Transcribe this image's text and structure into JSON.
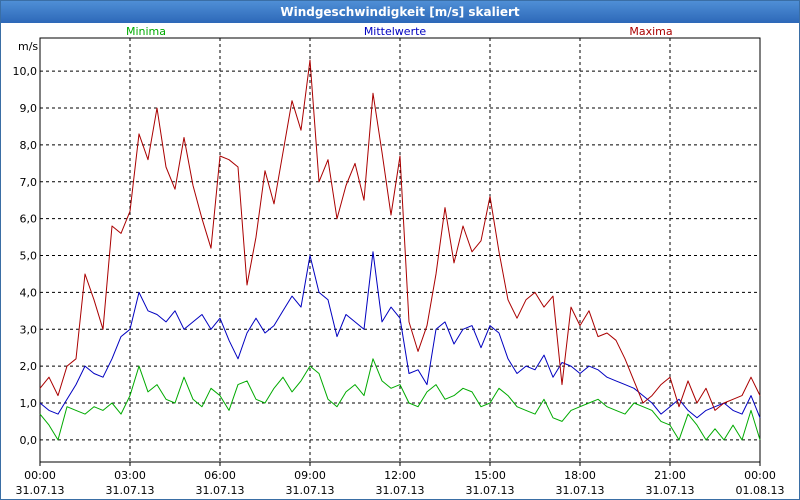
{
  "window": {
    "title": "Windgeschwindigkeit [m/s] skaliert"
  },
  "chart_data": {
    "type": "line",
    "title": "Windgeschwindigkeit [m/s] skaliert",
    "ylabel": "m/s",
    "ylim": [
      -0.6,
      10.9
    ],
    "yticks": [
      "0,0",
      "1,0",
      "2,0",
      "3,0",
      "4,0",
      "5,0",
      "6,0",
      "7,0",
      "8,0",
      "9,0",
      "10,0"
    ],
    "xlim_hours": [
      0,
      24
    ],
    "xticks": [
      {
        "time": "00:00",
        "date": "31.07.13"
      },
      {
        "time": "03:00",
        "date": "31.07.13"
      },
      {
        "time": "06:00",
        "date": "31.07.13"
      },
      {
        "time": "09:00",
        "date": "31.07.13"
      },
      {
        "time": "12:00",
        "date": "31.07.13"
      },
      {
        "time": "15:00",
        "date": "31.07.13"
      },
      {
        "time": "18:00",
        "date": "31.07.13"
      },
      {
        "time": "21:00",
        "date": "31.07.13"
      },
      {
        "time": "00:00",
        "date": "01.08.13"
      }
    ],
    "grid": true,
    "series": [
      {
        "name": "Minima",
        "color": "#00aa00",
        "x": [
          0,
          0.3,
          0.6,
          0.9,
          1.2,
          1.5,
          1.8,
          2.1,
          2.4,
          2.7,
          3.0,
          3.3,
          3.6,
          3.9,
          4.2,
          4.5,
          4.8,
          5.1,
          5.4,
          5.7,
          6.0,
          6.3,
          6.6,
          6.9,
          7.2,
          7.5,
          7.8,
          8.1,
          8.4,
          8.7,
          9.0,
          9.3,
          9.6,
          9.9,
          10.2,
          10.5,
          10.8,
          11.1,
          11.4,
          11.7,
          12.0,
          12.3,
          12.6,
          12.9,
          13.2,
          13.5,
          13.8,
          14.1,
          14.4,
          14.7,
          15.0,
          15.3,
          15.6,
          15.9,
          16.2,
          16.5,
          16.8,
          17.1,
          17.4,
          17.7,
          18.0,
          18.3,
          18.6,
          18.9,
          19.2,
          19.5,
          19.8,
          20.1,
          20.4,
          20.7,
          21.0,
          21.3,
          21.6,
          21.9,
          22.2,
          22.5,
          22.8,
          23.1,
          23.4,
          23.7,
          24.0
        ],
        "values": [
          0.7,
          0.4,
          0.0,
          0.9,
          0.8,
          0.7,
          0.9,
          0.8,
          1.0,
          0.7,
          1.2,
          2.0,
          1.3,
          1.5,
          1.1,
          1.0,
          1.7,
          1.1,
          0.9,
          1.4,
          1.2,
          0.8,
          1.5,
          1.6,
          1.1,
          1.0,
          1.4,
          1.7,
          1.3,
          1.6,
          2.0,
          1.8,
          1.1,
          0.9,
          1.3,
          1.5,
          1.2,
          2.2,
          1.6,
          1.4,
          1.5,
          1.0,
          0.9,
          1.3,
          1.5,
          1.1,
          1.2,
          1.4,
          1.3,
          0.9,
          1.0,
          1.4,
          1.2,
          0.9,
          0.8,
          0.7,
          1.1,
          0.6,
          0.5,
          0.8,
          0.9,
          1.0,
          1.1,
          0.9,
          0.8,
          0.7,
          1.0,
          0.9,
          0.8,
          0.5,
          0.4,
          0.0,
          0.7,
          0.4,
          0.0,
          0.3,
          0.0,
          0.4,
          0.0,
          0.8,
          0.0
        ]
      },
      {
        "name": "Mittelwerte",
        "color": "#0000c0",
        "x": [
          0,
          0.3,
          0.6,
          0.9,
          1.2,
          1.5,
          1.8,
          2.1,
          2.4,
          2.7,
          3.0,
          3.3,
          3.6,
          3.9,
          4.2,
          4.5,
          4.8,
          5.1,
          5.4,
          5.7,
          6.0,
          6.3,
          6.6,
          6.9,
          7.2,
          7.5,
          7.8,
          8.1,
          8.4,
          8.7,
          9.0,
          9.3,
          9.6,
          9.9,
          10.2,
          10.5,
          10.8,
          11.1,
          11.4,
          11.7,
          12.0,
          12.3,
          12.6,
          12.9,
          13.2,
          13.5,
          13.8,
          14.1,
          14.4,
          14.7,
          15.0,
          15.3,
          15.6,
          15.9,
          16.2,
          16.5,
          16.8,
          17.1,
          17.4,
          17.7,
          18.0,
          18.3,
          18.6,
          18.9,
          19.2,
          19.5,
          19.8,
          20.1,
          20.4,
          20.7,
          21.0,
          21.3,
          21.6,
          21.9,
          22.2,
          22.5,
          22.8,
          23.1,
          23.4,
          23.7,
          24.0
        ],
        "values": [
          1.0,
          0.8,
          0.7,
          1.1,
          1.5,
          2.0,
          1.8,
          1.7,
          2.2,
          2.8,
          3.0,
          4.0,
          3.5,
          3.4,
          3.2,
          3.5,
          3.0,
          3.2,
          3.4,
          3.0,
          3.3,
          2.7,
          2.2,
          2.9,
          3.3,
          2.9,
          3.1,
          3.5,
          3.9,
          3.6,
          5.0,
          4.0,
          3.8,
          2.8,
          3.4,
          3.2,
          3.0,
          5.1,
          3.2,
          3.6,
          3.3,
          1.8,
          1.9,
          1.5,
          3.0,
          3.2,
          2.6,
          3.0,
          3.1,
          2.5,
          3.1,
          2.9,
          2.2,
          1.8,
          2.0,
          1.9,
          2.3,
          1.7,
          2.1,
          2.0,
          1.8,
          2.0,
          1.9,
          1.7,
          1.6,
          1.5,
          1.4,
          1.2,
          1.0,
          0.7,
          0.9,
          1.1,
          0.8,
          0.6,
          0.8,
          0.9,
          1.0,
          0.8,
          0.7,
          1.2,
          0.6
        ]
      },
      {
        "name": "Maxima",
        "color": "#aa0000",
        "x": [
          0,
          0.3,
          0.6,
          0.9,
          1.2,
          1.5,
          1.8,
          2.1,
          2.4,
          2.7,
          3.0,
          3.3,
          3.6,
          3.9,
          4.2,
          4.5,
          4.8,
          5.1,
          5.4,
          5.7,
          6.0,
          6.3,
          6.6,
          6.9,
          7.2,
          7.5,
          7.8,
          8.1,
          8.4,
          8.7,
          9.0,
          9.3,
          9.6,
          9.9,
          10.2,
          10.5,
          10.8,
          11.1,
          11.4,
          11.7,
          12.0,
          12.3,
          12.6,
          12.9,
          13.2,
          13.5,
          13.8,
          14.1,
          14.4,
          14.7,
          15.0,
          15.3,
          15.6,
          15.9,
          16.2,
          16.5,
          16.8,
          17.1,
          17.4,
          17.7,
          18.0,
          18.3,
          18.6,
          18.9,
          19.2,
          19.5,
          19.8,
          20.1,
          20.4,
          20.7,
          21.0,
          21.3,
          21.6,
          21.9,
          22.2,
          22.5,
          22.8,
          23.1,
          23.4,
          23.7,
          24.0
        ],
        "values": [
          1.4,
          1.7,
          1.2,
          2.0,
          2.2,
          4.5,
          3.8,
          3.0,
          5.8,
          5.6,
          6.2,
          8.3,
          7.6,
          9.0,
          7.4,
          6.8,
          8.2,
          6.9,
          6.0,
          5.2,
          7.7,
          7.6,
          7.4,
          4.2,
          5.5,
          7.3,
          6.4,
          7.8,
          9.2,
          8.4,
          10.3,
          7.0,
          7.6,
          6.0,
          6.9,
          7.5,
          6.5,
          9.4,
          7.8,
          6.1,
          7.7,
          3.2,
          2.4,
          3.1,
          4.5,
          6.3,
          4.8,
          5.8,
          5.1,
          5.4,
          6.6,
          5.1,
          3.8,
          3.3,
          3.8,
          4.0,
          3.6,
          3.9,
          1.5,
          3.6,
          3.1,
          3.5,
          2.8,
          2.9,
          2.7,
          2.2,
          1.6,
          1.0,
          1.2,
          1.5,
          1.7,
          0.9,
          1.6,
          1.0,
          1.4,
          0.8,
          1.0,
          1.1,
          1.2,
          1.7,
          1.2
        ]
      }
    ]
  }
}
